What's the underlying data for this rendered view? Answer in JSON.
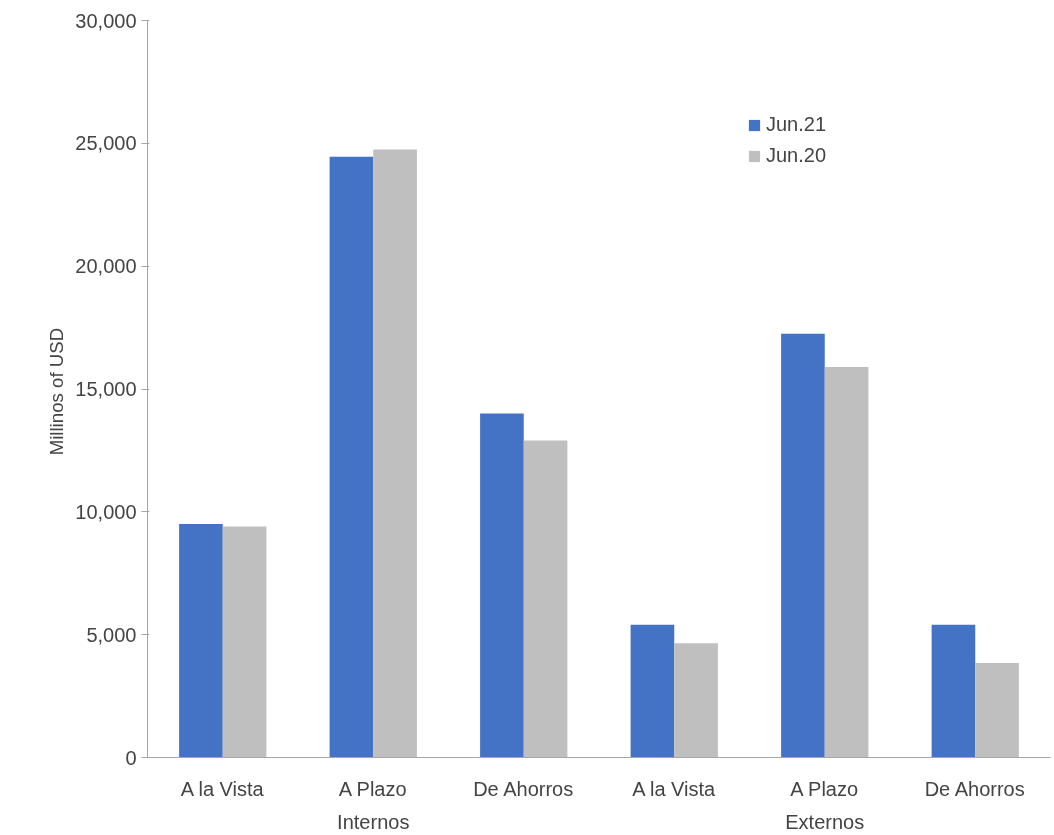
{
  "chart_data": {
    "type": "bar",
    "ylabel": "Millinos of  USD",
    "categories": [
      "A la Vista",
      "A Plazo",
      "De Ahorros",
      "A la Vista",
      "A Plazo",
      "De Ahorros"
    ],
    "series": [
      {
        "name": "Jun.21",
        "color": "#4472c4",
        "values": [
          9500,
          24450,
          14000,
          5400,
          17250,
          5400
        ]
      },
      {
        "name": "Jun.20",
        "color": "#bfbfbf",
        "values": [
          9400,
          24750,
          12900,
          4650,
          15900,
          3850
        ]
      }
    ],
    "annotations": [
      "Internos",
      "Externos"
    ],
    "ylim": [
      0,
      30000
    ],
    "yticks": [
      0,
      {
        "value": 5000,
        "label": "5,000"
      },
      {
        "value": 10000,
        "label": "10,000"
      },
      {
        "value": 15000,
        "label": "15,000"
      },
      {
        "value": 20000,
        "label": "20,000"
      },
      {
        "value": 25000,
        "label": "25,000"
      },
      {
        "value": 30000,
        "label": "30,000"
      }
    ],
    "grid": false,
    "legend": "top right"
  }
}
